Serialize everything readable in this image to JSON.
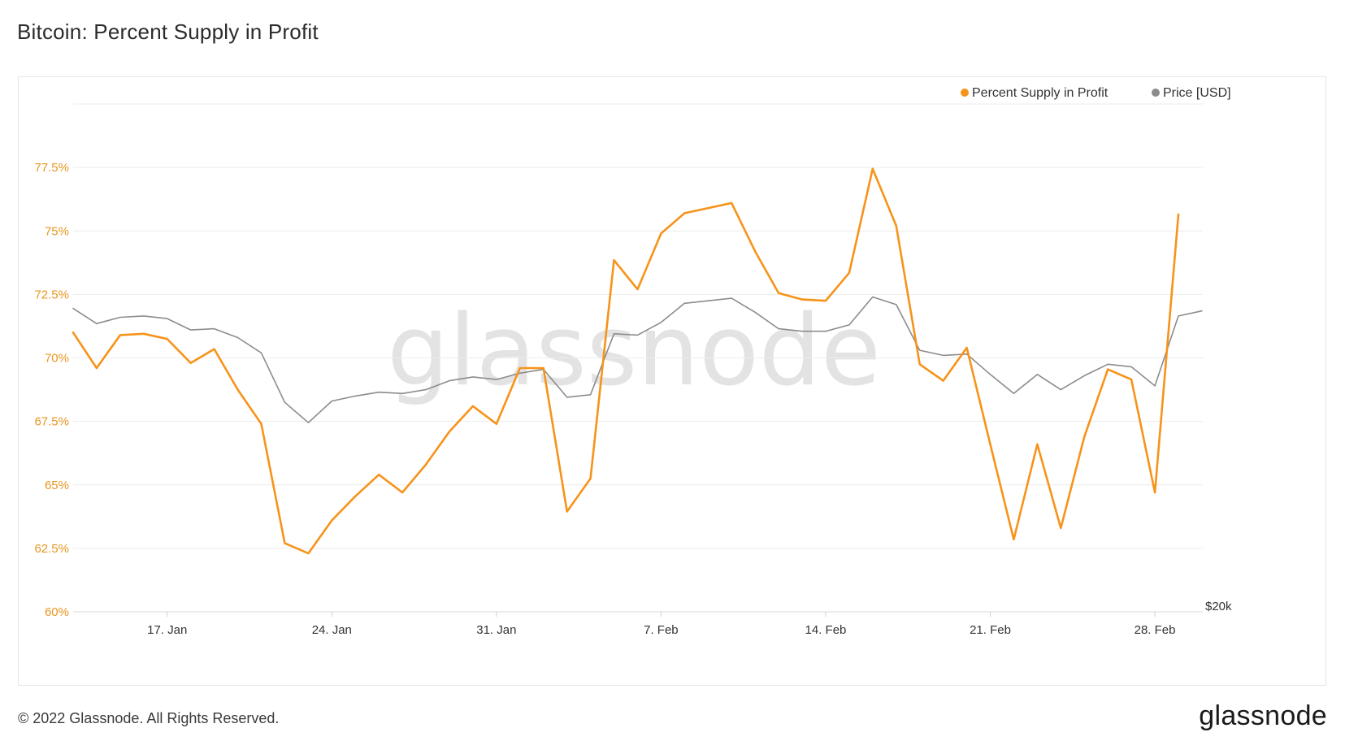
{
  "title": "Bitcoin: Percent Supply in Profit",
  "footer": {
    "copyright": "© 2022 Glassnode. All Rights Reserved.",
    "logo": "glassnode"
  },
  "watermark": "glassnode",
  "colors": {
    "supply": "#f7931a",
    "price": "#8c8c8c",
    "grid": "#ececec",
    "left_axis": "#e8961e",
    "right_axis": "#333333"
  },
  "chart_data": {
    "type": "line",
    "x_start": "2022-01-13",
    "x_end": "2022-03-01",
    "x_ticks": [
      {
        "date": "2022-01-17",
        "label": "17. Jan"
      },
      {
        "date": "2022-01-24",
        "label": "24. Jan"
      },
      {
        "date": "2022-01-31",
        "label": "31. Jan"
      },
      {
        "date": "2022-02-07",
        "label": "7. Feb"
      },
      {
        "date": "2022-02-14",
        "label": "14. Feb"
      },
      {
        "date": "2022-02-21",
        "label": "21. Feb"
      },
      {
        "date": "2022-02-28",
        "label": "28. Feb"
      }
    ],
    "y_left": {
      "ticks": [
        60,
        62.5,
        65,
        67.5,
        70,
        72.5,
        75,
        77.5
      ],
      "tick_labels": [
        "60%",
        "62.5%",
        "65%",
        "67.5%",
        "70%",
        "72.5%",
        "75%",
        "77.5%"
      ],
      "range": [
        60,
        80
      ]
    },
    "y_right": {
      "tick_labels": [
        "$20k"
      ],
      "range": [
        20000,
        60000
      ]
    },
    "grid": true,
    "legend_position": "top-right",
    "series": [
      {
        "name": "Percent Supply in Profit",
        "axis": "left",
        "color": "#f7931a",
        "points": [
          [
            "2022-01-13",
            71.0
          ],
          [
            "2022-01-14",
            69.6
          ],
          [
            "2022-01-15",
            70.9
          ],
          [
            "2022-01-16",
            70.95
          ],
          [
            "2022-01-17",
            70.75
          ],
          [
            "2022-01-18",
            69.8
          ],
          [
            "2022-01-19",
            70.35
          ],
          [
            "2022-01-20",
            68.75
          ],
          [
            "2022-01-21",
            67.4
          ],
          [
            "2022-01-22",
            62.7
          ],
          [
            "2022-01-23",
            62.3
          ],
          [
            "2022-01-24",
            63.6
          ],
          [
            "2022-01-25",
            64.55
          ],
          [
            "2022-01-26",
            65.4
          ],
          [
            "2022-01-27",
            64.7
          ],
          [
            "2022-01-28",
            65.8
          ],
          [
            "2022-01-29",
            67.1
          ],
          [
            "2022-01-30",
            68.1
          ],
          [
            "2022-01-31",
            67.4
          ],
          [
            "2022-02-01",
            69.6
          ],
          [
            "2022-02-02",
            69.6
          ],
          [
            "2022-02-03",
            63.95
          ],
          [
            "2022-02-04",
            65.25
          ],
          [
            "2022-02-05",
            73.85
          ],
          [
            "2022-02-06",
            72.7
          ],
          [
            "2022-02-07",
            74.9
          ],
          [
            "2022-02-08",
            75.7
          ],
          [
            "2022-02-09",
            75.9
          ],
          [
            "2022-02-10",
            76.1
          ],
          [
            "2022-02-11",
            74.2
          ],
          [
            "2022-02-12",
            72.55
          ],
          [
            "2022-02-13",
            72.3
          ],
          [
            "2022-02-14",
            72.25
          ],
          [
            "2022-02-15",
            73.35
          ],
          [
            "2022-02-16",
            77.45
          ],
          [
            "2022-02-17",
            75.2
          ],
          [
            "2022-02-18",
            69.75
          ],
          [
            "2022-02-19",
            69.1
          ],
          [
            "2022-02-20",
            70.4
          ],
          [
            "2022-02-21",
            66.6
          ],
          [
            "2022-02-22",
            62.85
          ],
          [
            "2022-02-23",
            66.6
          ],
          [
            "2022-02-24",
            63.3
          ],
          [
            "2022-02-25",
            66.9
          ],
          [
            "2022-02-26",
            69.55
          ],
          [
            "2022-02-27",
            69.15
          ],
          [
            "2022-02-28",
            64.7
          ],
          [
            "2022-03-01",
            75.65
          ]
        ]
      },
      {
        "name": "Price [USD]",
        "axis": "right",
        "color": "#8c8c8c",
        "points": [
          [
            "2022-01-13",
            43900
          ],
          [
            "2022-01-14",
            42700
          ],
          [
            "2022-01-15",
            43200
          ],
          [
            "2022-01-16",
            43300
          ],
          [
            "2022-01-17",
            43100
          ],
          [
            "2022-01-18",
            42200
          ],
          [
            "2022-01-19",
            42300
          ],
          [
            "2022-01-20",
            41600
          ],
          [
            "2022-01-21",
            40400
          ],
          [
            "2022-01-22",
            36500
          ],
          [
            "2022-01-23",
            34900
          ],
          [
            "2022-01-24",
            36600
          ],
          [
            "2022-01-25",
            37000
          ],
          [
            "2022-01-26",
            37300
          ],
          [
            "2022-01-27",
            37200
          ],
          [
            "2022-01-28",
            37500
          ],
          [
            "2022-01-29",
            38200
          ],
          [
            "2022-01-30",
            38500
          ],
          [
            "2022-01-31",
            38300
          ],
          [
            "2022-02-01",
            38800
          ],
          [
            "2022-02-02",
            39100
          ],
          [
            "2022-02-03",
            36900
          ],
          [
            "2022-02-04",
            37100
          ],
          [
            "2022-02-05",
            41900
          ],
          [
            "2022-02-06",
            41800
          ],
          [
            "2022-02-07",
            42800
          ],
          [
            "2022-02-08",
            44300
          ],
          [
            "2022-02-09",
            44500
          ],
          [
            "2022-02-10",
            44700
          ],
          [
            "2022-02-11",
            43600
          ],
          [
            "2022-02-12",
            42300
          ],
          [
            "2022-02-13",
            42100
          ],
          [
            "2022-02-14",
            42100
          ],
          [
            "2022-02-15",
            42600
          ],
          [
            "2022-02-16",
            44800
          ],
          [
            "2022-02-17",
            44200
          ],
          [
            "2022-02-18",
            40600
          ],
          [
            "2022-02-19",
            40200
          ],
          [
            "2022-02-20",
            40300
          ],
          [
            "2022-02-21",
            38700
          ],
          [
            "2022-02-22",
            37200
          ],
          [
            "2022-02-23",
            38700
          ],
          [
            "2022-02-24",
            37500
          ],
          [
            "2022-02-25",
            38600
          ],
          [
            "2022-02-26",
            39500
          ],
          [
            "2022-02-27",
            39300
          ],
          [
            "2022-02-28",
            37800
          ],
          [
            "2022-03-01",
            43300
          ],
          [
            "2022-03-02",
            43700
          ]
        ]
      }
    ]
  }
}
